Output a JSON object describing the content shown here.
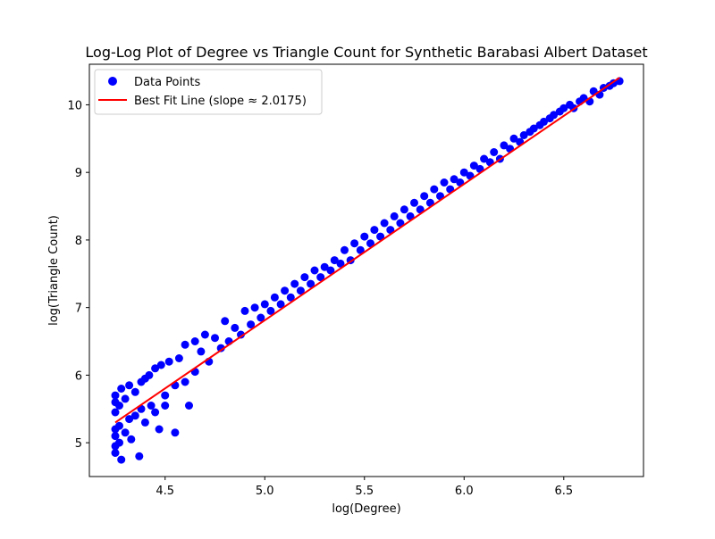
{
  "chart_data": {
    "type": "scatter",
    "title": "Log-Log Plot of Degree vs Triangle Count for Synthetic Barabasi Albert Dataset",
    "xlabel": "log(Degree)",
    "ylabel": "log(Triangle Count)",
    "xlim": [
      4.12,
      6.9
    ],
    "ylim": [
      4.5,
      10.6
    ],
    "xticks": [
      4.5,
      5.0,
      5.5,
      6.0,
      6.5
    ],
    "yticks": [
      5,
      6,
      7,
      8,
      9,
      10
    ],
    "xtick_labels": [
      "4.5",
      "5.0",
      "5.5",
      "6.0",
      "6.5"
    ],
    "ytick_labels": [
      "5",
      "6",
      "7",
      "8",
      "9",
      "10"
    ],
    "grid": false,
    "legend_placement": "top-left",
    "series": [
      {
        "name": "Data Points",
        "kind": "scatter",
        "color": "#0000ff",
        "x": [
          4.25,
          4.25,
          4.25,
          4.25,
          4.25,
          4.25,
          4.25,
          4.27,
          4.27,
          4.27,
          4.28,
          4.28,
          4.3,
          4.3,
          4.32,
          4.32,
          4.33,
          4.35,
          4.35,
          4.37,
          4.38,
          4.38,
          4.4,
          4.4,
          4.42,
          4.43,
          4.45,
          4.45,
          4.47,
          4.48,
          4.5,
          4.5,
          4.52,
          4.55,
          4.55,
          4.57,
          4.6,
          4.6,
          4.62,
          4.65,
          4.65,
          4.68,
          4.7,
          4.72,
          4.75,
          4.78,
          4.8,
          4.82,
          4.85,
          4.88,
          4.9,
          4.93,
          4.95,
          4.98,
          5.0,
          5.03,
          5.05,
          5.08,
          5.1,
          5.13,
          5.15,
          5.18,
          5.2,
          5.23,
          5.25,
          5.28,
          5.3,
          5.33,
          5.35,
          5.38,
          5.4,
          5.43,
          5.45,
          5.48,
          5.5,
          5.53,
          5.55,
          5.58,
          5.6,
          5.63,
          5.65,
          5.68,
          5.7,
          5.73,
          5.75,
          5.78,
          5.8,
          5.83,
          5.85,
          5.88,
          5.9,
          5.93,
          5.95,
          5.98,
          6.0,
          6.03,
          6.05,
          6.08,
          6.1,
          6.13,
          6.15,
          6.18,
          6.2,
          6.23,
          6.25,
          6.28,
          6.3,
          6.33,
          6.35,
          6.38,
          6.4,
          6.43,
          6.45,
          6.48,
          6.5,
          6.53,
          6.55,
          6.58,
          6.6,
          6.63,
          6.65,
          6.68,
          6.7,
          6.73,
          6.75,
          6.78
        ],
        "y": [
          5.7,
          5.45,
          5.2,
          4.95,
          5.6,
          5.1,
          4.85,
          5.55,
          5.25,
          5.0,
          5.8,
          4.75,
          5.65,
          5.15,
          5.85,
          5.35,
          5.05,
          5.75,
          5.4,
          4.8,
          5.9,
          5.5,
          5.95,
          5.3,
          6.0,
          5.55,
          6.1,
          5.45,
          5.2,
          6.15,
          5.7,
          5.55,
          6.2,
          5.85,
          5.15,
          6.25,
          6.45,
          5.9,
          5.55,
          6.5,
          6.05,
          6.35,
          6.6,
          6.2,
          6.55,
          6.4,
          6.8,
          6.5,
          6.7,
          6.6,
          6.95,
          6.75,
          7.0,
          6.85,
          7.05,
          6.95,
          7.15,
          7.05,
          7.25,
          7.15,
          7.35,
          7.25,
          7.45,
          7.35,
          7.55,
          7.45,
          7.6,
          7.55,
          7.7,
          7.65,
          7.85,
          7.7,
          7.95,
          7.85,
          8.05,
          7.95,
          8.15,
          8.05,
          8.25,
          8.15,
          8.35,
          8.25,
          8.45,
          8.35,
          8.55,
          8.45,
          8.65,
          8.55,
          8.75,
          8.65,
          8.85,
          8.75,
          8.9,
          8.85,
          9.0,
          8.95,
          9.1,
          9.05,
          9.2,
          9.15,
          9.3,
          9.2,
          9.4,
          9.35,
          9.5,
          9.45,
          9.55,
          9.6,
          9.65,
          9.7,
          9.75,
          9.8,
          9.85,
          9.9,
          9.95,
          10.0,
          9.95,
          10.05,
          10.1,
          10.05,
          10.2,
          10.15,
          10.25,
          10.28,
          10.32,
          10.35
        ]
      },
      {
        "name": "Best Fit Line (slope ≈ 2.0175)",
        "kind": "line",
        "color": "#ff0000",
        "x": [
          4.25,
          6.78
        ],
        "y": [
          5.3,
          10.4
        ]
      }
    ]
  }
}
